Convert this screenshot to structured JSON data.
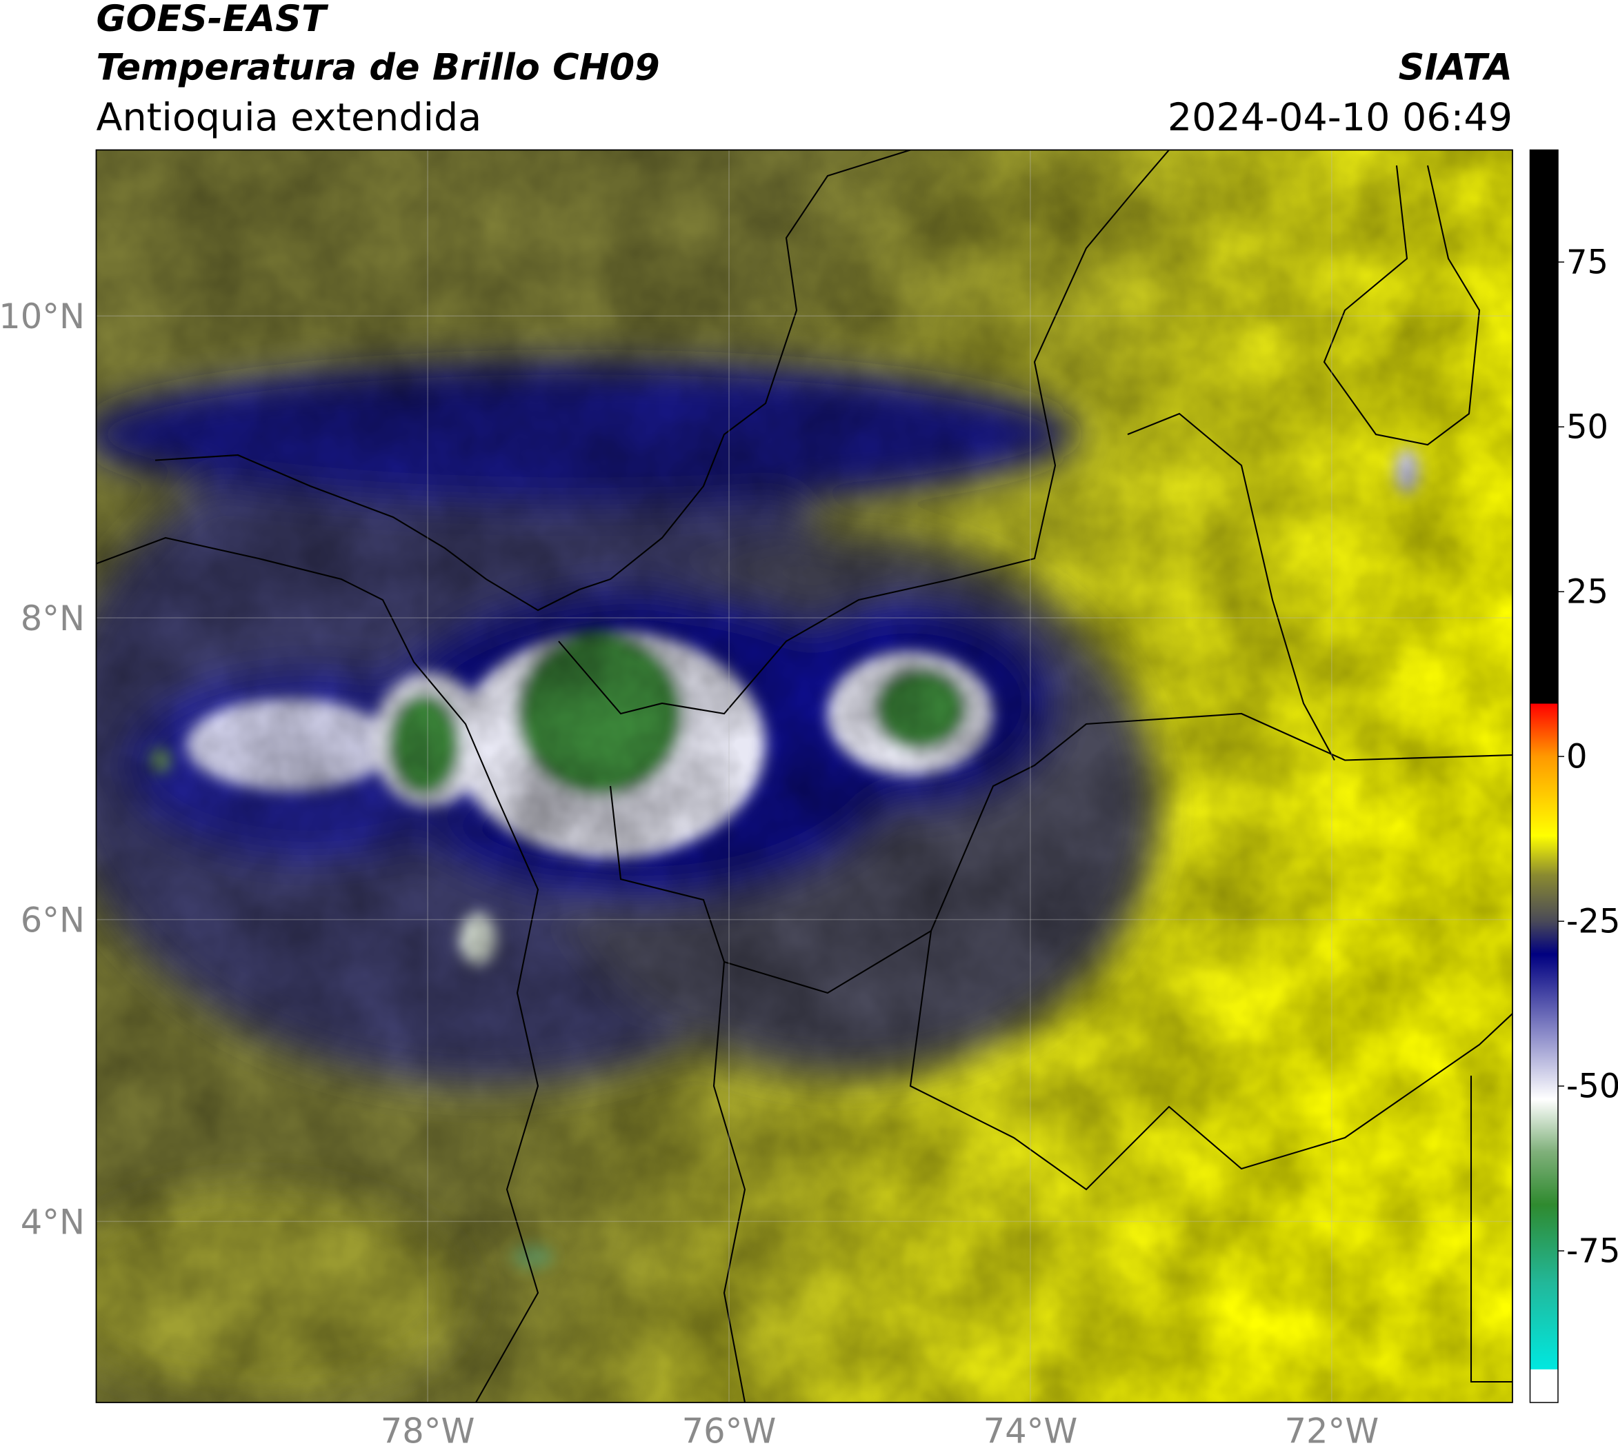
{
  "header": {
    "satellite": "GOES-EAST",
    "product": "Temperatura de Brillo CH09",
    "region": "Antioquia extendida",
    "source": "SIATA",
    "datetime": "2024-04-10 06:49"
  },
  "map": {
    "xlim": [
      -80.2,
      -70.8
    ],
    "ylim": [
      2.8,
      11.1
    ],
    "xticks": [
      {
        "value": -78,
        "label": "78°W"
      },
      {
        "value": -76,
        "label": "76°W"
      },
      {
        "value": -74,
        "label": "74°W"
      },
      {
        "value": -72,
        "label": "72°W"
      }
    ],
    "yticks": [
      {
        "value": 4,
        "label": "4°N"
      },
      {
        "value": 6,
        "label": "6°N"
      },
      {
        "value": 8,
        "label": "8°N"
      },
      {
        "value": 10,
        "label": "10°N"
      }
    ],
    "grid": true
  },
  "colorbar": {
    "lim": [
      -98,
      92
    ],
    "ticks": [
      75,
      50,
      25,
      0,
      -25,
      -50,
      -75
    ],
    "stops": [
      {
        "value": -98,
        "color": "#ffffff"
      },
      {
        "value": -93,
        "color": "#ffffff"
      },
      {
        "value": -93,
        "color": "#00e8e0"
      },
      {
        "value": -80,
        "color": "#22b89a"
      },
      {
        "value": -68,
        "color": "#2f8a2f"
      },
      {
        "value": -60,
        "color": "#7fb07a"
      },
      {
        "value": -52,
        "color": "#ffffff"
      },
      {
        "value": -42,
        "color": "#8a8ac8"
      },
      {
        "value": -30,
        "color": "#000080"
      },
      {
        "value": -25,
        "color": "#4a4a58"
      },
      {
        "value": -18,
        "color": "#8a8a30"
      },
      {
        "value": -12,
        "color": "#ffff00"
      },
      {
        "value": 0,
        "color": "#ff9900"
      },
      {
        "value": 8,
        "color": "#ff0000"
      },
      {
        "value": 8,
        "color": "#000000"
      },
      {
        "value": 92,
        "color": "#000000"
      }
    ]
  }
}
